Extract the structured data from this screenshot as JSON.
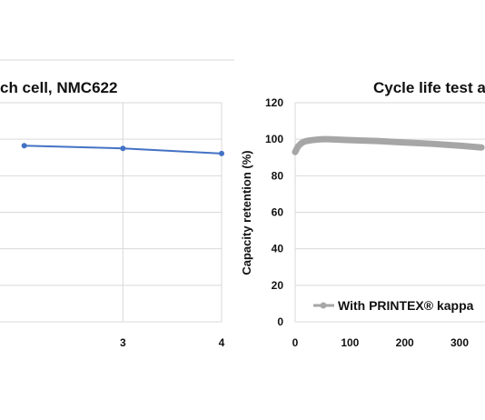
{
  "chart_data": [
    {
      "type": "line",
      "title": "ch cell, NMC622",
      "xlabel": "",
      "ylabel": "",
      "x_ticks": [
        "3",
        "4"
      ],
      "xlim": [
        2,
        4
      ],
      "ylim": [
        0,
        120
      ],
      "grid": true,
      "color": "#4472c4",
      "series": [
        {
          "x": [
            2,
            3,
            4
          ],
          "y": [
            96.5,
            95.0,
            92.2
          ]
        }
      ]
    },
    {
      "type": "line",
      "title": "Cycle life test a",
      "xlabel": "",
      "ylabel": "Capacity retention (%)",
      "y_ticks": [
        "0",
        "20",
        "40",
        "60",
        "80",
        "100",
        "120"
      ],
      "x_ticks": [
        "0",
        "100",
        "200",
        "300"
      ],
      "xlim": [
        0,
        340
      ],
      "ylim": [
        0,
        120
      ],
      "grid": true,
      "legend": "bottom-right",
      "color": "#a6a6a6",
      "series": [
        {
          "name": "With PRINTEX® kappa",
          "x": [
            0,
            5,
            10,
            15,
            20,
            30,
            40,
            50,
            60,
            80,
            100,
            150,
            200,
            250,
            300,
            340
          ],
          "y": [
            93.0,
            96.0,
            97.5,
            98.5,
            99.0,
            99.5,
            99.8,
            100.0,
            100.0,
            99.8,
            99.5,
            99.0,
            98.2,
            97.5,
            96.5,
            95.5
          ]
        }
      ]
    }
  ]
}
